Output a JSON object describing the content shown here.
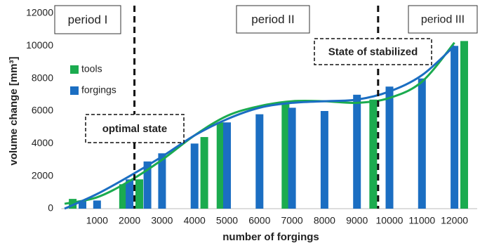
{
  "chart_data": {
    "type": "bar",
    "xlabel": "number of forgings",
    "ylabel": "volume change [mm³]",
    "xlim": [
      -100,
      12700
    ],
    "xticks": [
      1000,
      2000,
      3000,
      4000,
      5000,
      6000,
      7000,
      8000,
      9000,
      10000,
      11000,
      12000
    ],
    "ylim": [
      0,
      12000
    ],
    "yticks": [
      0,
      2000,
      4000,
      6000,
      8000,
      10000,
      12000
    ],
    "series": [
      {
        "name": "tools",
        "color": "#1bab4f",
        "x": [
          250,
          1800,
          2300,
          4300,
          4800,
          6800,
          9500,
          12300
        ],
        "values": [
          600,
          1500,
          1800,
          4400,
          5300,
          6500,
          6700,
          10300
        ]
      },
      {
        "name": "forgings",
        "color": "#1b6ec2",
        "x": [
          550,
          1000,
          2000,
          2550,
          3000,
          4000,
          5000,
          6000,
          7000,
          8000,
          9000,
          10000,
          11000,
          12000
        ],
        "values": [
          500,
          500,
          1800,
          2900,
          3400,
          4000,
          5300,
          5800,
          6200,
          6000,
          7000,
          7500,
          8000,
          10000
        ]
      }
    ],
    "trends": [
      {
        "color": "#1bab4f",
        "x": [
          0,
          1000,
          2000,
          3000,
          4000,
          5000,
          6000,
          7000,
          8000,
          9000,
          10000,
          11000,
          12000
        ],
        "values": [
          300,
          700,
          1700,
          3000,
          4500,
          5700,
          6300,
          6600,
          6600,
          6500,
          6800,
          7800,
          10200
        ]
      },
      {
        "color": "#1b6ec2",
        "x": [
          0,
          1000,
          2000,
          3000,
          4000,
          5000,
          6000,
          7000,
          8000,
          9000,
          10000,
          11000,
          12000
        ],
        "values": [
          0,
          900,
          2000,
          3200,
          4500,
          5500,
          6200,
          6500,
          6600,
          6700,
          7200,
          8200,
          10000
        ]
      }
    ],
    "vlines": [
      2150,
      9650
    ],
    "annotations": [
      "period I",
      "period II",
      "period III",
      "optimal state",
      "State of stabilized"
    ]
  }
}
